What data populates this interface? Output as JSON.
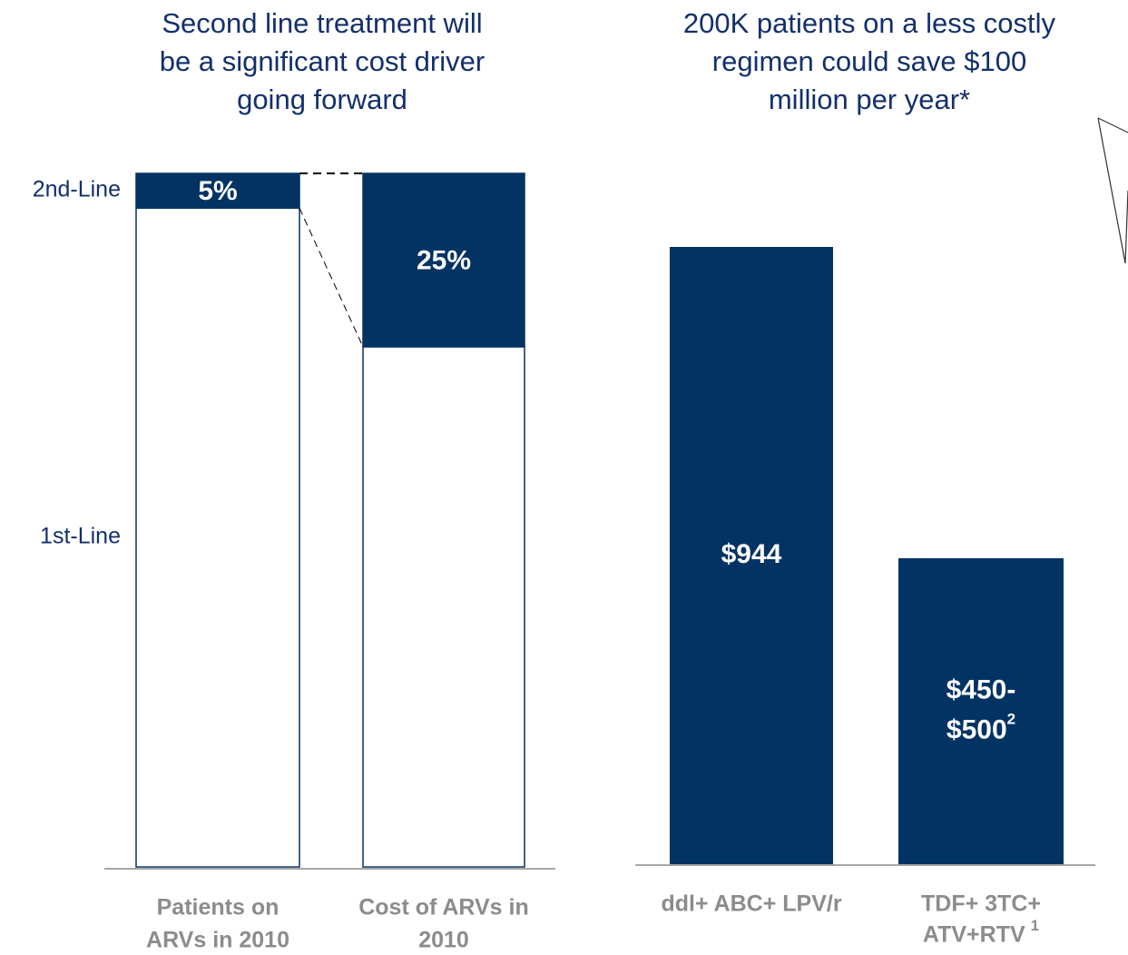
{
  "chart_data": [
    {
      "type": "stacked_bar",
      "title": [
        "Second line treatment will",
        "be a significant cost driver",
        "going forward"
      ],
      "categories": [
        [
          "Patients on",
          "ARVs in 2010"
        ],
        [
          "Cost of ARVs in",
          "2010"
        ]
      ],
      "series": [
        {
          "name": "1st-Line",
          "color": "#ffffff",
          "values": [
            95,
            75
          ]
        },
        {
          "name": "2nd-Line",
          "color": "#033363",
          "values": [
            5,
            25
          ],
          "value_labels": [
            "5%",
            "25%"
          ]
        }
      ],
      "ylim": [
        0,
        100
      ]
    },
    {
      "type": "bar",
      "title": [
        "200K patients on a less costly",
        "regimen could save $100",
        "million per year*"
      ],
      "categories": [
        [
          "ddl+ ABC+ LPV/r"
        ],
        [
          "TDF+ 3TC+",
          "ATV+RTV"
        ]
      ],
      "category_notes": [
        null,
        "1"
      ],
      "values": [
        944,
        468
      ],
      "value_labels": [
        "$944",
        "$450-$500"
      ],
      "value_label_notes": [
        null,
        "2"
      ],
      "color": "#033363"
    }
  ]
}
